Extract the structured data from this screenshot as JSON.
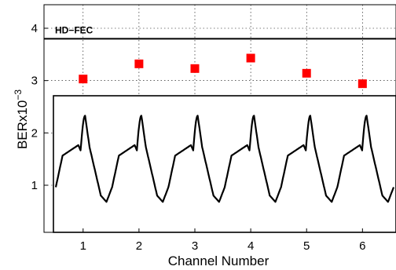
{
  "chart_data": {
    "type": "scatter",
    "title": "",
    "xlabel": "Channel Number",
    "ylabel_base": "BERx10",
    "ylabel_exp": "−3",
    "xlim": [
      0.3,
      6.6
    ],
    "ylim": [
      0.1,
      4.45
    ],
    "xticks": [
      1,
      2,
      3,
      4,
      5,
      6
    ],
    "yticks": [
      1,
      2,
      3,
      4
    ],
    "grid": true,
    "series": [
      {
        "type": "scatter",
        "marker": "square",
        "color": "#ff0000",
        "x": [
          1,
          2,
          3,
          4,
          5,
          6
        ],
        "y": [
          3.03,
          3.32,
          3.23,
          3.43,
          3.14,
          2.94
        ]
      }
    ],
    "threshold": {
      "label": "HD−FEC",
      "y": 3.8,
      "color": "#000000"
    },
    "inset": {
      "description_free": true,
      "pulse_count": 6,
      "color": "#000000"
    }
  }
}
